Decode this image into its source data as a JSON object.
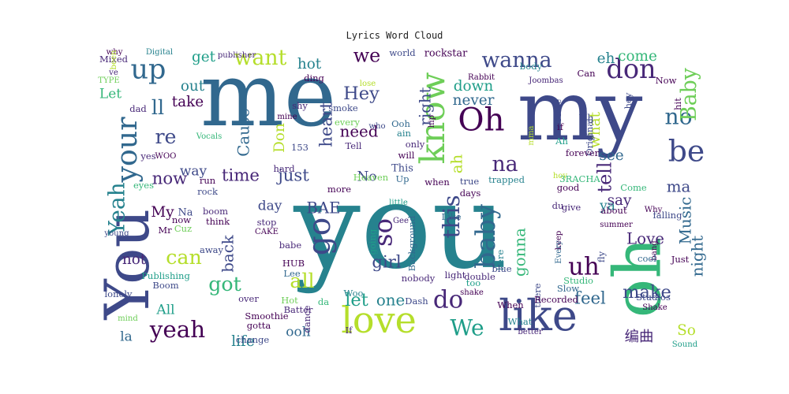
{
  "chart_data": {
    "type": "wordcloud",
    "title": "Lyrics Word Cloud",
    "colormap": "viridis",
    "palette": [
      "#440154",
      "#482878",
      "#3e4989",
      "#31688e",
      "#26828e",
      "#1f9e89",
      "#35b779",
      "#6ece58",
      "#b5de2b",
      "#fde725"
    ],
    "words": [
      {
        "text": "you",
        "weight": 100,
        "ci": 4,
        "rot": 0
      },
      {
        "text": "me",
        "weight": 62,
        "ci": 3,
        "rot": 0
      },
      {
        "text": "my",
        "weight": 58,
        "ci": 2,
        "rot": 0
      },
      {
        "text": "oh",
        "weight": 45,
        "ci": 6,
        "rot": 1
      },
      {
        "text": "You",
        "weight": 42,
        "ci": 2,
        "rot": 1
      },
      {
        "text": "like",
        "weight": 36,
        "ci": 2,
        "rot": 0
      },
      {
        "text": "love",
        "weight": 30,
        "ci": 8,
        "rot": 0
      },
      {
        "text": "know",
        "weight": 28,
        "ci": 7,
        "rot": 1
      },
      {
        "text": "Oh",
        "weight": 26,
        "ci": 0,
        "rot": 0
      },
      {
        "text": "go",
        "weight": 25,
        "ci": 2,
        "rot": 1
      },
      {
        "text": "be",
        "weight": 24,
        "ci": 2,
        "rot": 0
      },
      {
        "text": "your",
        "weight": 23,
        "ci": 3,
        "rot": 1
      },
      {
        "text": "up",
        "weight": 22,
        "ci": 3,
        "rot": 0
      },
      {
        "text": "baby",
        "weight": 21,
        "ci": 3,
        "rot": 1
      },
      {
        "text": "don",
        "weight": 21,
        "ci": 1,
        "rot": 0
      },
      {
        "text": "so",
        "weight": 20,
        "ci": 1,
        "rot": 1
      },
      {
        "text": "uh",
        "weight": 19,
        "ci": 0,
        "rot": 0
      },
      {
        "text": "do",
        "weight": 19,
        "ci": 1,
        "rot": 0
      },
      {
        "text": "this",
        "weight": 18,
        "ci": 2,
        "rot": 1
      },
      {
        "text": "yeah",
        "weight": 18,
        "ci": 0,
        "rot": 0
      },
      {
        "text": "We",
        "weight": 17,
        "ci": 5,
        "rot": 0
      },
      {
        "text": "no",
        "weight": 17,
        "ci": 3,
        "rot": 0
      },
      {
        "text": "Yeah",
        "weight": 17,
        "ci": 4,
        "rot": 1
      },
      {
        "text": "wanna",
        "weight": 16,
        "ci": 2,
        "rot": 0
      },
      {
        "text": "want",
        "weight": 16,
        "ci": 8,
        "rot": 0
      },
      {
        "text": "na",
        "weight": 16,
        "ci": 1,
        "rot": 0
      },
      {
        "text": "Baby",
        "weight": 16,
        "ci": 7,
        "rot": 1
      },
      {
        "text": "re",
        "weight": 15,
        "ci": 2,
        "rot": 0
      },
      {
        "text": "can",
        "weight": 15,
        "ci": 8,
        "rot": 0
      },
      {
        "text": "ll",
        "weight": 15,
        "ci": 3,
        "rot": 0
      },
      {
        "text": "got",
        "weight": 15,
        "ci": 6,
        "rot": 0
      },
      {
        "text": "all",
        "weight": 15,
        "ci": 8,
        "rot": 0
      },
      {
        "text": "we",
        "weight": 14,
        "ci": 0,
        "rot": 0
      },
      {
        "text": "tell",
        "weight": 14,
        "ci": 1,
        "rot": 1
      },
      {
        "text": "Hey",
        "weight": 13,
        "ci": 2,
        "rot": 0
      },
      {
        "text": "let",
        "weight": 13,
        "ci": 5,
        "rot": 0
      },
      {
        "text": "make",
        "weight": 13,
        "ci": 2,
        "rot": 0
      },
      {
        "text": "time",
        "weight": 12,
        "ci": 1,
        "rot": 0
      },
      {
        "text": "just",
        "weight": 12,
        "ci": 2,
        "rot": 0
      },
      {
        "text": "now",
        "weight": 12,
        "ci": 1,
        "rot": 0
      },
      {
        "text": "girl",
        "weight": 12,
        "ci": 2,
        "rot": 0
      },
      {
        "text": "feel",
        "weight": 12,
        "ci": 3,
        "rot": 0
      },
      {
        "text": "heart",
        "weight": 12,
        "ci": 2,
        "rot": 1
      },
      {
        "text": "Cause",
        "weight": 11,
        "ci": 3,
        "rot": 1
      },
      {
        "text": "gonna",
        "weight": 11,
        "ci": 6,
        "rot": 1
      },
      {
        "text": "back",
        "weight": 11,
        "ci": 2,
        "rot": 1
      },
      {
        "text": "right",
        "weight": 11,
        "ci": 2,
        "rot": 1
      },
      {
        "text": "need",
        "weight": 11,
        "ci": 0,
        "rot": 0
      },
      {
        "text": "Love",
        "weight": 11,
        "ci": 1,
        "rot": 0
      },
      {
        "text": "night",
        "weight": 11,
        "ci": 3,
        "rot": 1
      },
      {
        "text": "Music",
        "weight": 11,
        "ci": 3,
        "rot": 1
      },
      {
        "text": "BAE",
        "weight": 11,
        "ci": 2,
        "rot": 0
      },
      {
        "text": "ma",
        "weight": 11,
        "ci": 2,
        "rot": 0
      },
      {
        "text": "ah",
        "weight": 11,
        "ci": 8,
        "rot": 1
      },
      {
        "text": "one",
        "weight": 11,
        "ci": 4,
        "rot": 0
      },
      {
        "text": "Don",
        "weight": 10,
        "ci": 8,
        "rot": 1
      },
      {
        "text": "not",
        "weight": 10,
        "ci": 1,
        "rot": 0
      },
      {
        "text": "My",
        "weight": 10,
        "ci": 0,
        "rot": 0
      },
      {
        "text": "hot",
        "weight": 10,
        "ci": 4,
        "rot": 0
      },
      {
        "text": "get",
        "weight": 10,
        "ci": 5,
        "rot": 0
      },
      {
        "text": "out",
        "weight": 10,
        "ci": 4,
        "rot": 0
      },
      {
        "text": "take",
        "weight": 10,
        "ci": 0,
        "rot": 0
      },
      {
        "text": "down",
        "weight": 10,
        "ci": 5,
        "rot": 0
      },
      {
        "text": "never",
        "weight": 10,
        "ci": 3,
        "rot": 0
      },
      {
        "text": "what",
        "weight": 10,
        "ci": 8,
        "rot": 1
      },
      {
        "text": "see",
        "weight": 10,
        "ci": 3,
        "rot": 0
      },
      {
        "text": "say",
        "weight": 10,
        "ci": 1,
        "rot": 0
      },
      {
        "text": "come",
        "weight": 10,
        "ci": 6,
        "rot": 0
      },
      {
        "text": "eh",
        "weight": 10,
        "ci": 4,
        "rot": 0
      },
      {
        "text": "life",
        "weight": 10,
        "ci": 4,
        "rot": 0
      },
      {
        "text": "So",
        "weight": 10,
        "ci": 8,
        "rot": 0
      },
      {
        "text": "编曲",
        "weight": 10,
        "ci": 1,
        "rot": 0
      },
      {
        "text": "day",
        "weight": 9,
        "ci": 2,
        "rot": 0
      },
      {
        "text": "All",
        "weight": 9,
        "ci": 5,
        "rot": 0
      },
      {
        "text": "la",
        "weight": 9,
        "ci": 3,
        "rot": 0
      },
      {
        "text": "No",
        "weight": 9,
        "ci": 2,
        "rot": 0
      },
      {
        "text": "way",
        "weight": 9,
        "ci": 2,
        "rot": 0
      },
      {
        "text": "Let",
        "weight": 9,
        "ci": 6,
        "rot": 0
      },
      {
        "text": "ooh",
        "weight": 9,
        "ci": 3,
        "rot": 0
      },
      {
        "text": "ya",
        "weight": 9,
        "ci": 4,
        "rot": 0
      },
      {
        "text": "rockstar",
        "weight": 6,
        "ci": 0,
        "rot": 0
      },
      {
        "text": "world",
        "weight": 5,
        "ci": 2,
        "rot": 0
      },
      {
        "text": "ding",
        "weight": 5,
        "ci": 0,
        "rot": 0
      },
      {
        "text": "lose",
        "weight": 4,
        "ci": 8,
        "rot": 0
      },
      {
        "text": "smoke",
        "weight": 5,
        "ci": 2,
        "rot": 0
      },
      {
        "text": "shy",
        "weight": 5,
        "ci": 1,
        "rot": 0
      },
      {
        "text": "mine",
        "weight": 4,
        "ci": 0,
        "rot": 0
      },
      {
        "text": "every",
        "weight": 5,
        "ci": 7,
        "rot": 0
      },
      {
        "text": "who",
        "weight": 4,
        "ci": 2,
        "rot": 0
      },
      {
        "text": "Ooh",
        "weight": 5,
        "ci": 3,
        "rot": 0
      },
      {
        "text": "ain",
        "weight": 5,
        "ci": 4,
        "rot": 0
      },
      {
        "text": "Tell",
        "weight": 5,
        "ci": 1,
        "rot": 0
      },
      {
        "text": "only",
        "weight": 5,
        "ci": 1,
        "rot": 0
      },
      {
        "text": "will",
        "weight": 5,
        "ci": 0,
        "rot": 0
      },
      {
        "text": "153",
        "weight": 5,
        "ci": 2,
        "rot": 0
      },
      {
        "text": "hard",
        "weight": 5,
        "ci": 1,
        "rot": 0
      },
      {
        "text": "This",
        "weight": 6,
        "ci": 2,
        "rot": 0
      },
      {
        "text": "Heaven",
        "weight": 5,
        "ci": 7,
        "rot": 0
      },
      {
        "text": "more",
        "weight": 5,
        "ci": 0,
        "rot": 0
      },
      {
        "text": "Up",
        "weight": 5,
        "ci": 3,
        "rot": 0
      },
      {
        "text": "true",
        "weight": 5,
        "ci": 2,
        "rot": 0
      },
      {
        "text": "days",
        "weight": 5,
        "ci": 0,
        "rot": 0
      },
      {
        "text": "trapped",
        "weight": 5,
        "ci": 4,
        "rot": 0
      },
      {
        "text": "when",
        "weight": 5,
        "ci": 0,
        "rot": 0
      },
      {
        "text": "Like",
        "weight": 5,
        "ci": 3,
        "rot": 0
      },
      {
        "text": "little",
        "weight": 4,
        "ci": 5,
        "rot": 0
      },
      {
        "text": "Background",
        "weight": 5,
        "ci": 3,
        "rot": 1
      },
      {
        "text": "going",
        "weight": 5,
        "ci": 5,
        "rot": 1
      },
      {
        "text": "babe",
        "weight": 5,
        "ci": 1,
        "rot": 0
      },
      {
        "text": "Gee",
        "weight": 4,
        "ci": 1,
        "rot": 0
      },
      {
        "text": "here",
        "weight": 5,
        "ci": 4,
        "rot": 1
      },
      {
        "text": "blue",
        "weight": 5,
        "ci": 2,
        "rot": 0
      },
      {
        "text": "light",
        "weight": 5,
        "ci": 1,
        "rot": 0
      },
      {
        "text": "nobody",
        "weight": 5,
        "ci": 1,
        "rot": 0
      },
      {
        "text": "double",
        "weight": 5,
        "ci": 1,
        "rot": 0
      },
      {
        "text": "Dash",
        "weight": 5,
        "ci": 2,
        "rot": 0
      },
      {
        "text": "too",
        "weight": 5,
        "ci": 5,
        "rot": 0
      },
      {
        "text": "shake",
        "weight": 4,
        "ci": 0,
        "rot": 0
      },
      {
        "text": "dance",
        "weight": 5,
        "ci": 1,
        "rot": 1
      },
      {
        "text": "If",
        "weight": 5,
        "ci": 1,
        "rot": 0
      },
      {
        "text": "When",
        "weight": 5,
        "ci": 0,
        "rot": 0
      },
      {
        "text": "What",
        "weight": 5,
        "ci": 4,
        "rot": 0
      },
      {
        "text": "better",
        "weight": 4,
        "ci": 1,
        "rot": 0
      },
      {
        "text": "there",
        "weight": 5,
        "ci": 2,
        "rot": 1
      },
      {
        "text": "Recorded",
        "weight": 5,
        "ci": 0,
        "rot": 0
      },
      {
        "text": "Slow",
        "weight": 5,
        "ci": 3,
        "rot": 0
      },
      {
        "text": "Studio",
        "weight": 5,
        "ci": 6,
        "rot": 0
      },
      {
        "text": "da",
        "weight": 5,
        "ci": 6,
        "rot": 0
      },
      {
        "text": "Woo",
        "weight": 5,
        "ci": 4,
        "rot": 0
      },
      {
        "text": "Smoothie",
        "weight": 5,
        "ci": 0,
        "rot": 0
      },
      {
        "text": "Batter",
        "weight": 5,
        "ci": 1,
        "rot": 0
      },
      {
        "text": "Hot",
        "weight": 5,
        "ci": 7,
        "rot": 0
      },
      {
        "text": "gotta",
        "weight": 5,
        "ci": 0,
        "rot": 0
      },
      {
        "text": "change",
        "weight": 5,
        "ci": 2,
        "rot": 0
      },
      {
        "text": "HUB",
        "weight": 5,
        "ci": 0,
        "rot": 0
      },
      {
        "text": "Lee",
        "weight": 5,
        "ci": 3,
        "rot": 0
      },
      {
        "text": "over",
        "weight": 5,
        "ci": 1,
        "rot": 0
      },
      {
        "text": "Boom",
        "weight": 5,
        "ci": 2,
        "rot": 0
      },
      {
        "text": "lonely",
        "weight": 5,
        "ci": 2,
        "rot": 0
      },
      {
        "text": "Publishing",
        "weight": 5,
        "ci": 5,
        "rot": 0
      },
      {
        "text": "mind",
        "weight": 4,
        "ci": 7,
        "rot": 0
      },
      {
        "text": "away",
        "weight": 5,
        "ci": 2,
        "rot": 0
      },
      {
        "text": "think",
        "weight": 5,
        "ci": 0,
        "rot": 0
      },
      {
        "text": "boom",
        "weight": 5,
        "ci": 1,
        "rot": 0
      },
      {
        "text": "stop",
        "weight": 5,
        "ci": 1,
        "rot": 0
      },
      {
        "text": "CAKE",
        "weight": 4,
        "ci": 0,
        "rot": 0
      },
      {
        "text": "young",
        "weight": 4,
        "ci": 2,
        "rot": 0
      },
      {
        "text": "Mr",
        "weight": 5,
        "ci": 0,
        "rot": 0
      },
      {
        "text": "Cuz",
        "weight": 5,
        "ci": 7,
        "rot": 0
      },
      {
        "text": "now",
        "weight": 5,
        "ci": 0,
        "rot": 0
      },
      {
        "text": "Na",
        "weight": 6,
        "ci": 2,
        "rot": 0
      },
      {
        "text": "run",
        "weight": 5,
        "ci": 0,
        "rot": 0
      },
      {
        "text": "rock",
        "weight": 5,
        "ci": 2,
        "rot": 0
      },
      {
        "text": "eyes",
        "weight": 5,
        "ci": 6,
        "rot": 0
      },
      {
        "text": "yes",
        "weight": 5,
        "ci": 1,
        "rot": 0
      },
      {
        "text": "WOO",
        "weight": 4,
        "ci": 0,
        "rot": 0
      },
      {
        "text": "Vocals",
        "weight": 4,
        "ci": 6,
        "rot": 0
      },
      {
        "text": "dad",
        "weight": 5,
        "ci": 1,
        "rot": 0
      },
      {
        "text": "TYPE",
        "weight": 4,
        "ci": 7,
        "rot": 0
      },
      {
        "text": "ve",
        "weight": 4,
        "ci": 1,
        "rot": 0
      },
      {
        "text": "why",
        "weight": 4,
        "ci": 0,
        "rot": 0
      },
      {
        "text": "Digital",
        "weight": 4,
        "ci": 4,
        "rot": 0
      },
      {
        "text": "publisher",
        "weight": 4,
        "ci": 1,
        "rot": 0
      },
      {
        "text": "hip",
        "weight": 4,
        "ci": 0,
        "rot": 1
      },
      {
        "text": "Rabbit",
        "weight": 4,
        "ci": 0,
        "rot": 0
      },
      {
        "text": "Joombas",
        "weight": 4,
        "ci": 1,
        "rot": 0
      },
      {
        "text": "Can",
        "weight": 5,
        "ci": 0,
        "rot": 0
      },
      {
        "text": "Now",
        "weight": 5,
        "ci": 0,
        "rot": 0
      },
      {
        "text": "hey",
        "weight": 5,
        "ci": 2,
        "rot": 1
      },
      {
        "text": "Uh",
        "weight": 6,
        "ci": 2,
        "rot": 0
      },
      {
        "text": "if",
        "weight": 5,
        "ci": 0,
        "rot": 0
      },
      {
        "text": "Ah",
        "weight": 5,
        "ci": 5,
        "rot": 0
      },
      {
        "text": "hit",
        "weight": 5,
        "ci": 0,
        "rot": 1
      },
      {
        "text": "Make",
        "weight": 4,
        "ci": 2,
        "rot": 1
      },
      {
        "text": "mma",
        "weight": 4,
        "ci": 8,
        "rot": 1
      },
      {
        "text": "Original",
        "weight": 5,
        "ci": 2,
        "rot": 1
      },
      {
        "text": "forever",
        "weight": 5,
        "ci": 0,
        "rot": 0
      },
      {
        "text": "hoy",
        "weight": 4,
        "ci": 8,
        "rot": 0
      },
      {
        "text": "3RACHA",
        "weight": 5,
        "ci": 6,
        "rot": 0
      },
      {
        "text": "good",
        "weight": 5,
        "ci": 0,
        "rot": 0
      },
      {
        "text": "Come",
        "weight": 5,
        "ci": 6,
        "rot": 0
      },
      {
        "text": "Why",
        "weight": 4,
        "ci": 0,
        "rot": 0
      },
      {
        "text": "falling",
        "weight": 5,
        "ci": 2,
        "rot": 0
      },
      {
        "text": "about",
        "weight": 5,
        "ci": 0,
        "rot": 0
      },
      {
        "text": "summer",
        "weight": 4,
        "ci": 0,
        "rot": 0
      },
      {
        "text": "du",
        "weight": 5,
        "ci": 1,
        "rot": 0
      },
      {
        "text": "give",
        "weight": 5,
        "ci": 1,
        "rot": 0
      },
      {
        "text": "keep",
        "weight": 4,
        "ci": 0,
        "rot": 1
      },
      {
        "text": "Every",
        "weight": 4,
        "ci": 3,
        "rot": 1
      },
      {
        "text": "fly",
        "weight": 5,
        "ci": 2,
        "rot": 1
      },
      {
        "text": "bang",
        "weight": 4,
        "ci": 0,
        "rot": 1
      },
      {
        "text": "cool",
        "weight": 5,
        "ci": 3,
        "rot": 0
      },
      {
        "text": "Just",
        "weight": 5,
        "ci": 0,
        "rot": 0
      },
      {
        "text": "Studios",
        "weight": 5,
        "ci": 2,
        "rot": 0
      },
      {
        "text": "Shake",
        "weight": 4,
        "ci": 0,
        "rot": 0
      },
      {
        "text": "Sound",
        "weight": 4,
        "ci": 5,
        "rot": 0
      },
      {
        "text": "body",
        "weight": 5,
        "ci": 4,
        "rot": 0
      },
      {
        "text": "Mixed",
        "weight": 5,
        "ci": 1,
        "rot": 0
      },
      {
        "text": "been",
        "weight": 4,
        "ci": 8,
        "rot": 1
      }
    ]
  }
}
